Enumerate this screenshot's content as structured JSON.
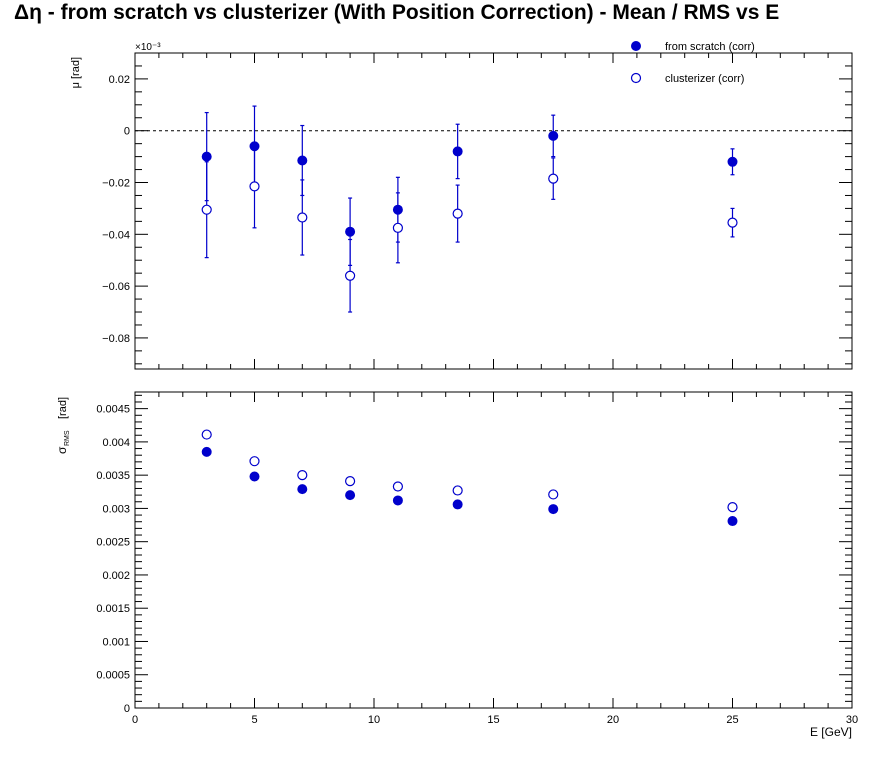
{
  "title": "Δη  -  from scratch vs clusterizer  (With Position Correction)  -  Mean / RMS vs E",
  "chart_data": [
    {
      "type": "scatter",
      "panel": "mean",
      "ylabel": "μ  [rad]",
      "exponent_label": "×10⁻³",
      "y_scale_note": "values in units of 1e-3 rad",
      "xlim": [
        0,
        30
      ],
      "ylim": [
        -0.092,
        0.03
      ],
      "yticks": [
        0.02,
        0,
        -0.02,
        -0.04,
        -0.06,
        -0.08
      ],
      "ytick_labels": [
        "0.02",
        "0",
        "−0.02",
        "−0.04",
        "−0.06",
        "−0.08"
      ],
      "reference_line_y": 0,
      "legend": {
        "placement": "top-right",
        "entries": [
          "from scratch (corr)",
          "clusterizer (corr)"
        ]
      },
      "series": [
        {
          "name": "from scratch (corr)",
          "marker": "filled-circle",
          "color": "#0000cc",
          "x": [
            3,
            5,
            7,
            9,
            11,
            13.5,
            17.5,
            25
          ],
          "y": [
            -0.01,
            -0.006,
            -0.0115,
            -0.039,
            -0.0305,
            -0.008,
            -0.002,
            -0.012
          ],
          "err": [
            0.017,
            0.0155,
            0.0135,
            0.013,
            0.0125,
            0.0105,
            0.008,
            0.005
          ]
        },
        {
          "name": "clusterizer (corr)",
          "marker": "open-circle",
          "color": "#0000cc",
          "x": [
            3,
            5,
            7,
            9,
            11,
            13.5,
            17.5,
            25
          ],
          "y": [
            -0.0305,
            -0.0215,
            -0.0335,
            -0.056,
            -0.0375,
            -0.032,
            -0.0185,
            -0.0355
          ],
          "err": [
            0.0185,
            0.016,
            0.0145,
            0.014,
            0.0135,
            0.011,
            0.008,
            0.0055
          ]
        }
      ]
    },
    {
      "type": "scatter",
      "panel": "rms",
      "ylabel": "σ",
      "ylabel_sub": "RMS",
      "ylabel_unit": "[rad]",
      "xlabel": "E  [GeV]",
      "xlim": [
        0,
        30
      ],
      "ylim": [
        0,
        0.00475
      ],
      "xticks": [
        0,
        5,
        10,
        15,
        20,
        25,
        30
      ],
      "xtick_labels": [
        "0",
        "5",
        "10",
        "15",
        "20",
        "25",
        "30"
      ],
      "yticks": [
        0,
        0.0005,
        0.001,
        0.0015,
        0.002,
        0.0025,
        0.003,
        0.0035,
        0.004,
        0.0045
      ],
      "ytick_labels": [
        "0",
        "0.0005",
        "0.001",
        "0.0015",
        "0.002",
        "0.0025",
        "0.003",
        "0.0035",
        "0.004",
        "0.0045"
      ],
      "series": [
        {
          "name": "from scratch (corr)",
          "marker": "filled-circle",
          "color": "#0000cc",
          "x": [
            3,
            5,
            7,
            9,
            11,
            13.5,
            17.5,
            25
          ],
          "y": [
            0.00385,
            0.00348,
            0.00329,
            0.0032,
            0.00312,
            0.00306,
            0.00299,
            0.00281
          ]
        },
        {
          "name": "clusterizer (corr)",
          "marker": "open-circle",
          "color": "#0000cc",
          "x": [
            3,
            5,
            7,
            9,
            11,
            13.5,
            17.5,
            25
          ],
          "y": [
            0.00411,
            0.00371,
            0.0035,
            0.00341,
            0.00333,
            0.00327,
            0.00321,
            0.00302
          ]
        }
      ]
    }
  ]
}
